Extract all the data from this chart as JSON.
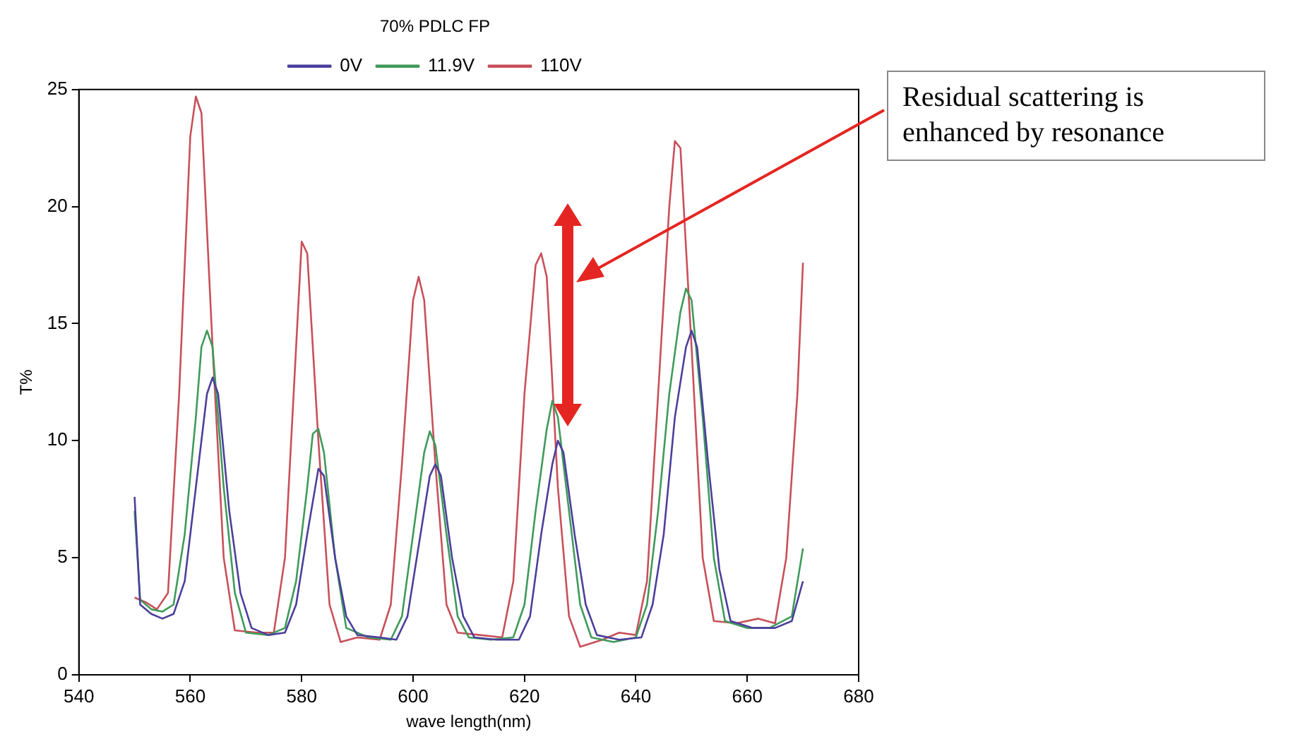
{
  "chart_data": {
    "type": "line",
    "title": "70% PDLC FP",
    "xlabel": "wave length(nm)",
    "ylabel": "T%",
    "xlim": [
      540,
      680
    ],
    "xticks": [
      540,
      560,
      580,
      600,
      620,
      640,
      660,
      680
    ],
    "ylim": [
      0,
      25
    ],
    "yticks": [
      0,
      5,
      10,
      15,
      20,
      25
    ],
    "grid": false,
    "legend": "top",
    "marker": "none",
    "line_style": "solid",
    "annotations": [
      "Residual scattering is enhanced by resonance"
    ],
    "series": [
      {
        "name": "0V",
        "color": "#4b3f9c",
        "x": [
          550,
          551,
          553,
          555,
          557,
          559,
          561,
          563,
          564,
          565,
          567,
          569,
          571,
          574,
          577,
          579,
          581,
          583,
          584,
          586,
          588,
          590,
          594,
          597,
          599,
          601,
          603,
          604,
          605,
          607,
          609,
          611,
          615,
          619,
          621,
          623,
          625,
          626,
          627,
          629,
          631,
          633,
          637,
          641,
          643,
          645,
          647,
          649,
          650,
          651,
          653,
          655,
          657,
          661,
          665,
          668,
          670
        ],
        "values": [
          7.6,
          3.0,
          2.6,
          2.4,
          2.6,
          4,
          8,
          12,
          12.7,
          12,
          7,
          3.5,
          2,
          1.7,
          1.8,
          3,
          6,
          8.8,
          8.5,
          5,
          2.5,
          1.7,
          1.6,
          1.5,
          2.5,
          5.5,
          8.5,
          9,
          8.5,
          5,
          2.5,
          1.6,
          1.5,
          1.5,
          2.5,
          6,
          9,
          10,
          9.5,
          6,
          3,
          1.7,
          1.5,
          1.6,
          3,
          6,
          11,
          14,
          14.7,
          14,
          9,
          4.5,
          2.3,
          2.0,
          2.0,
          2.3,
          4
        ]
      },
      {
        "name": "11.9V",
        "color": "#3f9a5a",
        "x": [
          550,
          551,
          553,
          555,
          557,
          559,
          561,
          562,
          563,
          564,
          566,
          568,
          570,
          574,
          577,
          579,
          581,
          582,
          583,
          584,
          586,
          588,
          592,
          596,
          598,
          600,
          602,
          603,
          604,
          606,
          608,
          610,
          614,
          618,
          620,
          622,
          624,
          625,
          626,
          628,
          630,
          632,
          636,
          640,
          642,
          644,
          646,
          648,
          649,
          650,
          652,
          654,
          656,
          660,
          664,
          668,
          670
        ],
        "values": [
          7.0,
          3.2,
          2.8,
          2.7,
          3,
          6,
          11,
          14,
          14.7,
          14,
          8,
          3.5,
          1.8,
          1.7,
          2,
          4,
          8,
          10.3,
          10.5,
          9.5,
          5,
          2,
          1.6,
          1.5,
          2.5,
          6,
          9.5,
          10.4,
          9.8,
          6,
          2.5,
          1.6,
          1.5,
          1.6,
          3,
          7,
          10.5,
          11.7,
          11,
          7,
          3,
          1.6,
          1.4,
          1.6,
          3,
          7,
          12,
          15.5,
          16.5,
          16,
          11,
          5,
          2.3,
          2.0,
          2.0,
          2.5,
          5.4
        ]
      },
      {
        "name": "110V",
        "color": "#c8505a",
        "x": [
          550,
          552,
          554,
          556,
          558,
          560,
          561,
          562,
          564,
          566,
          568,
          572,
          575,
          577,
          579,
          580,
          581,
          583,
          585,
          587,
          590,
          594,
          596,
          598,
          600,
          601,
          602,
          604,
          606,
          608,
          612,
          616,
          618,
          620,
          622,
          623,
          624,
          626,
          628,
          630,
          634,
          637,
          640,
          642,
          644,
          646,
          647,
          648,
          650,
          652,
          654,
          658,
          662,
          665,
          667,
          669,
          670
        ],
        "values": [
          3.3,
          3.1,
          2.8,
          3.5,
          12,
          23,
          24.7,
          24,
          14,
          5,
          1.9,
          1.8,
          1.8,
          5,
          14,
          18.5,
          18,
          10,
          3,
          1.4,
          1.6,
          1.5,
          3,
          9,
          16,
          17,
          16,
          9,
          3,
          1.8,
          1.7,
          1.6,
          4,
          12,
          17.5,
          18,
          17,
          8,
          2.5,
          1.2,
          1.5,
          1.8,
          1.7,
          4,
          12,
          20,
          22.8,
          22.5,
          14,
          5,
          2.3,
          2.2,
          2.4,
          2.2,
          5,
          12,
          17.6
        ]
      }
    ]
  }
}
